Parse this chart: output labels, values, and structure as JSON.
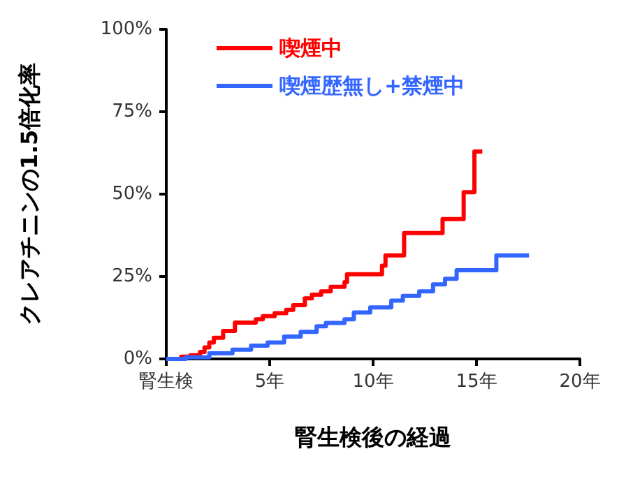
{
  "chart_data": {
    "type": "step",
    "xlabel": "腎生検後の経過",
    "ylabel": "クレアチニンの1.5倍化率",
    "xlim": [
      0,
      20
    ],
    "xticks": [
      {
        "value": 0,
        "label": "腎生検"
      },
      {
        "value": 5,
        "label": "5年"
      },
      {
        "value": 10,
        "label": "10年"
      },
      {
        "value": 15,
        "label": "15年"
      },
      {
        "value": 20,
        "label": "20年"
      }
    ],
    "ylim": [
      0,
      100
    ],
    "yticks": [
      {
        "value": 0,
        "label": "0%"
      },
      {
        "value": 25,
        "label": "25%"
      },
      {
        "value": 50,
        "label": "50%"
      },
      {
        "value": 75,
        "label": "75%"
      },
      {
        "value": 100,
        "label": "100%"
      }
    ],
    "grid": false,
    "legend": "top left",
    "marker": "none",
    "line_style": "solid",
    "series": [
      {
        "name": "喫煙中",
        "color": "#ff0000",
        "x": [
          0,
          0.72,
          1.17,
          1.63,
          1.85,
          2.08,
          2.3,
          2.75,
          3.32,
          4.33,
          4.67,
          5.24,
          5.8,
          6.14,
          6.7,
          7.04,
          7.49,
          7.95,
          8.62,
          8.74,
          10.43,
          10.6,
          11.5,
          13.36,
          14.38,
          14.9,
          15.28
        ],
        "values": [
          0,
          0.7,
          1.1,
          2.1,
          3.5,
          5,
          6.4,
          8.5,
          11,
          12,
          13,
          13.9,
          14.9,
          16.3,
          18.4,
          19.5,
          20.5,
          21.9,
          23.3,
          25.7,
          28.3,
          31.4,
          38.2,
          42.4,
          50.6,
          62.9,
          62.9
        ]
      },
      {
        "name": "喫煙歴無し+禁煙中",
        "color": "#3366ff",
        "x": [
          0,
          0.95,
          2.08,
          3.2,
          4.1,
          4.9,
          5.7,
          6.5,
          7.27,
          7.72,
          8.62,
          9.07,
          9.86,
          10.88,
          11.44,
          12.23,
          12.9,
          13.48,
          14.04,
          15.96,
          17.54
        ],
        "values": [
          0,
          0.5,
          1.7,
          2.8,
          4,
          5,
          6.8,
          8.2,
          9.9,
          10.9,
          12,
          14.1,
          15.6,
          17.7,
          19.1,
          20.5,
          22.6,
          24.3,
          26.9,
          31.4,
          31.4
        ]
      }
    ]
  }
}
